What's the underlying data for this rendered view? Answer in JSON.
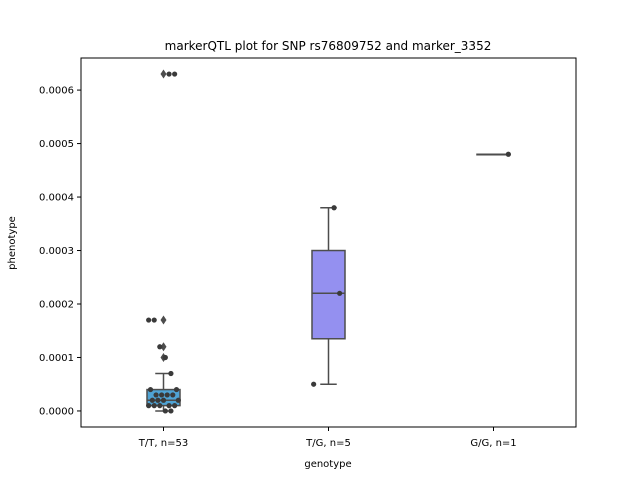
{
  "chart_data": {
    "type": "box-strip",
    "title": "markerQTL plot for SNP rs76809752 and marker_3352",
    "xlabel": "genotype",
    "ylabel": "phenotype",
    "ylim": [
      -3e-05,
      0.00066
    ],
    "yticks": [
      {
        "value": 0.0,
        "label": "0.0000"
      },
      {
        "value": 0.0001,
        "label": "0.0001"
      },
      {
        "value": 0.0002,
        "label": "0.0002"
      },
      {
        "value": 0.0003,
        "label": "0.0003"
      },
      {
        "value": 0.0004,
        "label": "0.0004"
      },
      {
        "value": 0.0005,
        "label": "0.0005"
      },
      {
        "value": 0.0006,
        "label": "0.0006"
      }
    ],
    "grid": false,
    "legend": "none",
    "categories": [
      "T/T, n=53",
      "T/G, n=5",
      "G/G, n=1"
    ],
    "boxes": [
      {
        "category": "T/T, n=53",
        "color": "#4fa3d4",
        "whisker_low": 0.0,
        "q1": 1e-05,
        "median": 2e-05,
        "q3": 4e-05,
        "whisker_high": 7e-05,
        "outliers": [
          0.0001,
          0.00012,
          0.00017,
          0.00063
        ]
      },
      {
        "category": "T/G, n=5",
        "color": "#9490f0",
        "whisker_low": 5e-05,
        "q1": 0.000135,
        "median": 0.00022,
        "q3": 0.0003,
        "whisker_high": 0.00038,
        "outliers": []
      },
      {
        "category": "G/G, n=1",
        "color": "#4fa3d4",
        "whisker_low": 0.00048,
        "q1": 0.00048,
        "median": 0.00048,
        "q3": 0.00048,
        "whisker_high": 0.00048,
        "outliers": []
      }
    ],
    "points": [
      {
        "category": "T/T, n=53",
        "values": [
          0.00063,
          0.00063,
          0.00017,
          0.00017,
          0.00012,
          0.0001,
          7e-05,
          4e-05,
          4e-05,
          3e-05,
          3e-05,
          3e-05,
          3e-05,
          2e-05,
          2e-05,
          2e-05,
          2e-05,
          1e-05,
          1e-05,
          1e-05,
          1e-05,
          1e-05,
          0.0,
          0.0
        ]
      },
      {
        "category": "T/G, n=5",
        "values": [
          0.00038,
          0.00022,
          5e-05
        ]
      },
      {
        "category": "G/G, n=1",
        "values": [
          0.00048
        ]
      }
    ],
    "colors": {
      "box_edge": "#4d4d4d",
      "point": "#3a3a3a"
    }
  }
}
